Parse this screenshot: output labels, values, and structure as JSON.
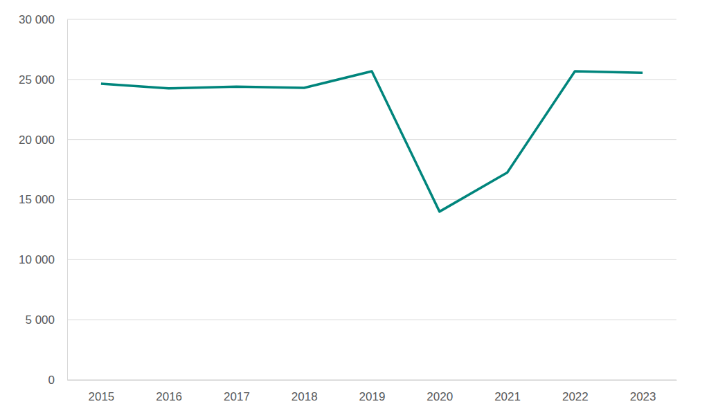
{
  "chart_data": {
    "type": "line",
    "categories": [
      "2015",
      "2016",
      "2017",
      "2018",
      "2019",
      "2020",
      "2021",
      "2022",
      "2023"
    ],
    "values": [
      24650,
      24250,
      24400,
      24300,
      25680,
      14000,
      17250,
      25680,
      25550
    ],
    "color": "#00857c",
    "ylim": [
      0,
      30000
    ],
    "yticks": [
      0,
      {
        "value": 5000,
        "label": "5 000"
      },
      {
        "value": 10000,
        "label": "10 000"
      },
      {
        "value": 15000,
        "label": "15 000"
      },
      {
        "value": 20000,
        "label": "20 000"
      },
      {
        "value": 25000,
        "label": "25 000"
      },
      {
        "value": 30000,
        "label": "30 000"
      }
    ],
    "grid": true
  }
}
